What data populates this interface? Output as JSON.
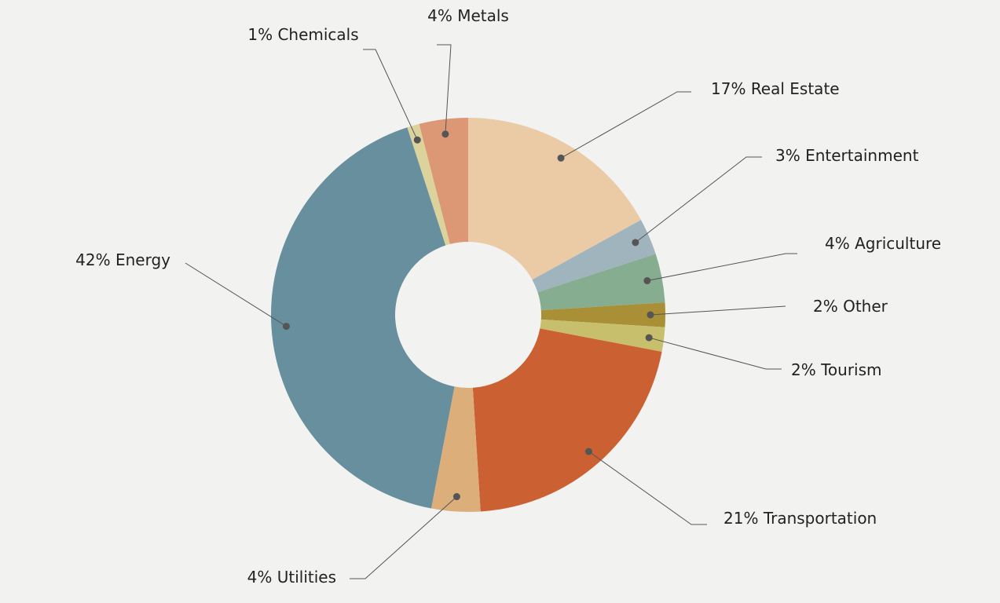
{
  "chart_data": {
    "type": "donut",
    "categories": [
      "Real Estate",
      "Entertainment",
      "Agriculture",
      "Other",
      "Tourism",
      "Transportation",
      "Utilities",
      "Energy",
      "Chemicals",
      "Metals"
    ],
    "values": [
      17,
      3,
      4,
      2,
      2,
      21,
      4,
      42,
      1,
      4
    ],
    "value_labels": [
      "17%",
      "3%",
      "4%",
      "2%",
      "2%",
      "21%",
      "4%",
      "42%",
      "1%",
      "4%"
    ],
    "colors": [
      "#eacba6",
      "#a0b4be",
      "#86ad8f",
      "#a98f35",
      "#c8bf6c",
      "#cb6132",
      "#dcae79",
      "#688f9e",
      "#dcd39c",
      "#dc9875"
    ]
  }
}
